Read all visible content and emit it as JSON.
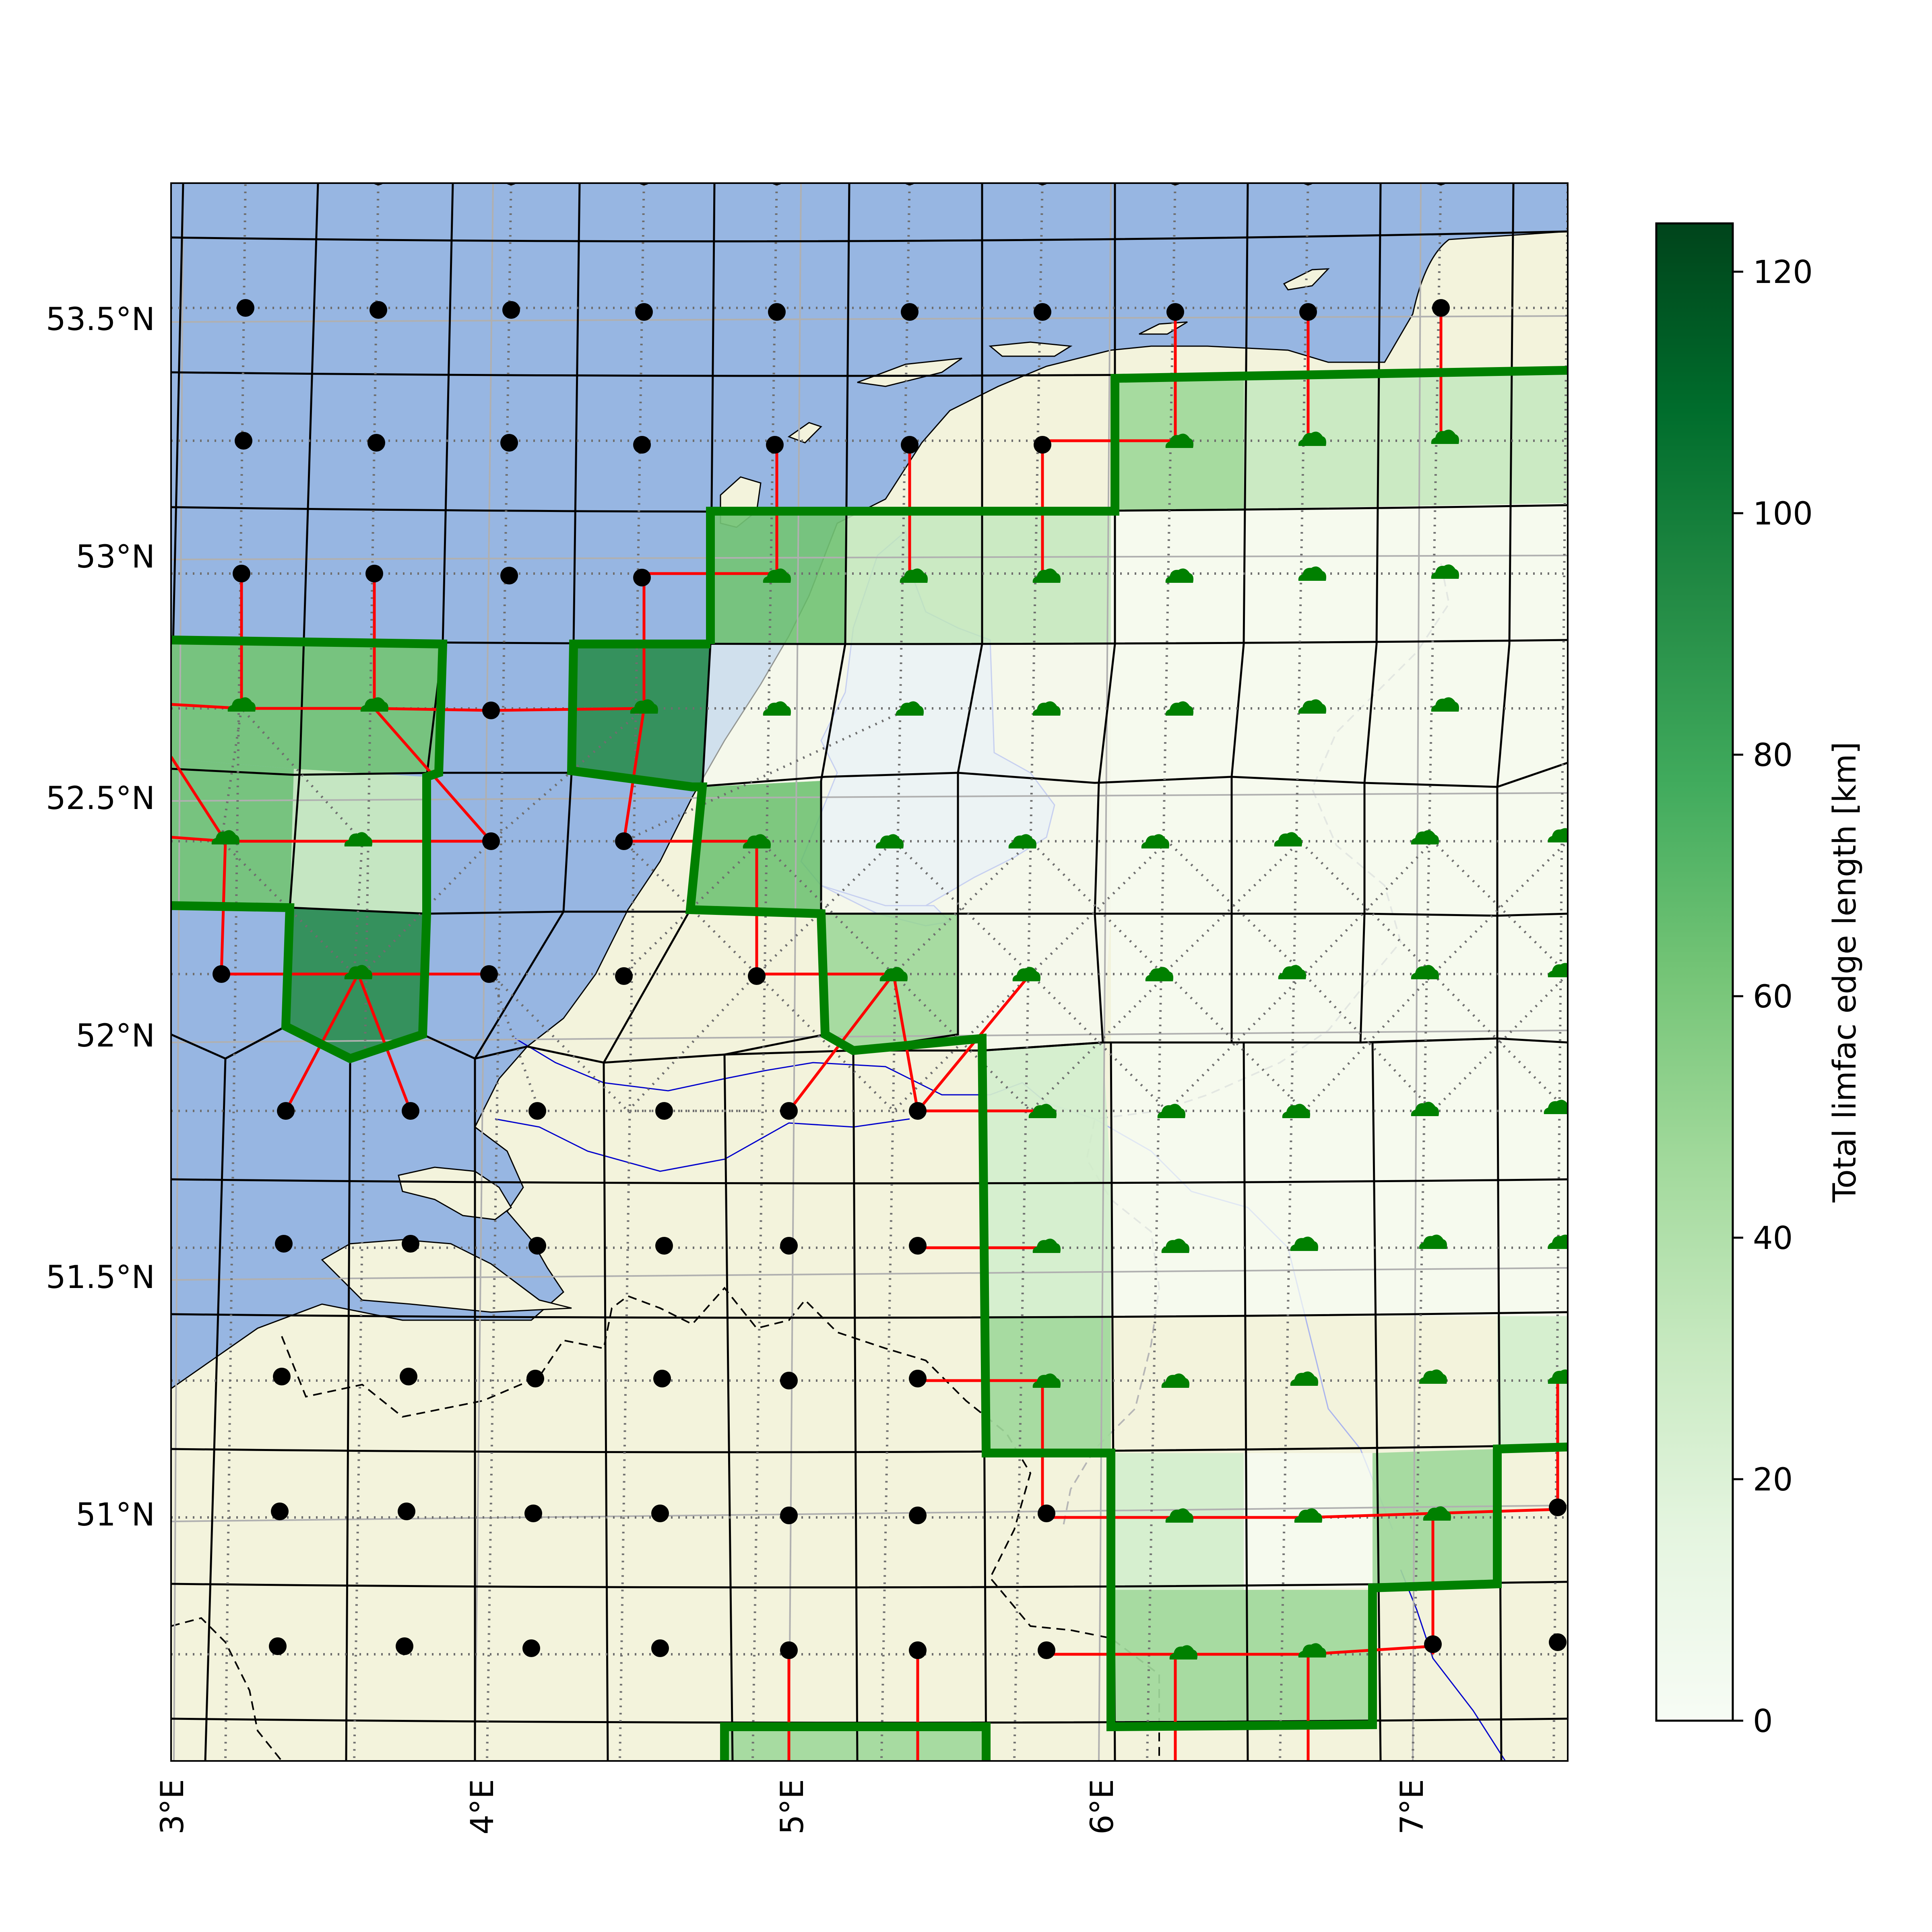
{
  "axes": {
    "lon_ticks": [
      {
        "value": 3,
        "label": "3°E"
      },
      {
        "value": 4,
        "label": "4°E"
      },
      {
        "value": 5,
        "label": "5°E"
      },
      {
        "value": 6,
        "label": "6°E"
      },
      {
        "value": 7,
        "label": "7°E"
      }
    ],
    "lat_ticks": [
      {
        "value": 53.5,
        "label": "53.5°N"
      },
      {
        "value": 53.0,
        "label": "53°N"
      },
      {
        "value": 52.5,
        "label": "52.5°N"
      },
      {
        "value": 52.0,
        "label": "52°N"
      },
      {
        "value": 51.5,
        "label": "51.5°N"
      },
      {
        "value": 51.0,
        "label": "51°N"
      }
    ]
  },
  "colorbar": {
    "label": "Total limfac edge length [km]",
    "ticks": [
      "0",
      "20",
      "40",
      "60",
      "80",
      "100",
      "120"
    ],
    "tick_values": [
      0,
      20,
      40,
      60,
      80,
      100,
      120
    ],
    "range": [
      0,
      124
    ],
    "colormap": "Greens"
  },
  "colors": {
    "sea": "#97b6e2",
    "land": "#f3f3dc",
    "limfac_edge": "#ff0000",
    "region_border": "#008000",
    "node_marker_sea": "#000000",
    "node_marker_land": "#008000",
    "cell_border": "#000000"
  },
  "legend_icons": {
    "sea_node": "black-dot-icon",
    "land_node": "green-cloud-icon"
  }
}
